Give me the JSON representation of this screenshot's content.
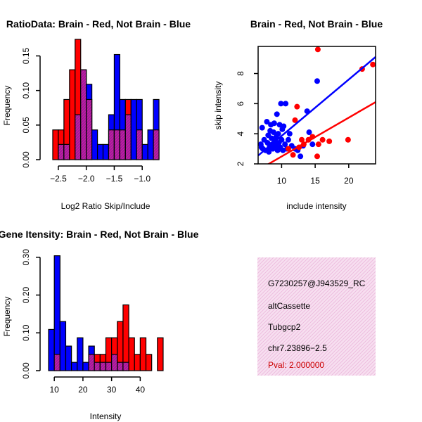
{
  "colors": {
    "brain": "#ff0000",
    "not_brain": "#0000ff",
    "overlap": "#9b1b9b",
    "overlap_hatch": "#d020a0",
    "info_bg": "#f7dff0",
    "info_hatch": "#ecb8dc",
    "pval": "#cc0000"
  },
  "chart_data": [
    {
      "id": "ratio-hist",
      "type": "bar",
      "title": "RatioData: Brain - Red, Not Brain - Blue",
      "xlabel": "Log2 Ratio Skip/Include",
      "ylabel": "Frequency",
      "xlim": [
        -2.65,
        -0.6
      ],
      "ylim": [
        0,
        0.18
      ],
      "xticks": [
        -2.5,
        -2.0,
        -1.5,
        -1.0
      ],
      "xtick_labels": [
        "−2.5",
        "−2.0",
        "−1.5",
        "−1.0"
      ],
      "yticks": [
        0,
        0.05,
        0.1,
        0.15
      ],
      "ytick_labels": [
        "0.00",
        "0.05",
        "0.10",
        "0.15"
      ],
      "bin_edges": [
        -2.6,
        -2.5,
        -2.4,
        -2.3,
        -2.2,
        -2.1,
        -2.0,
        -1.9,
        -1.8,
        -1.7,
        -1.6,
        -1.5,
        -1.4,
        -1.3,
        -1.2,
        -1.1,
        -1.0,
        -0.9,
        -0.8,
        -0.7
      ],
      "series": [
        {
          "name": "Brain",
          "color": "red",
          "values": [
            0.043,
            0.043,
            0.087,
            0.13,
            0.174,
            0.13,
            0.087,
            0.0,
            0.0,
            0.0,
            0.043,
            0.043,
            0.043,
            0.087,
            0.0,
            0.043,
            0.0,
            0.0,
            0.043
          ]
        },
        {
          "name": "Not Brain",
          "color": "blue",
          "values": [
            0.0,
            0.022,
            0.022,
            0.0,
            0.065,
            0.13,
            0.109,
            0.043,
            0.022,
            0.022,
            0.065,
            0.152,
            0.087,
            0.065,
            0.087,
            0.087,
            0.022,
            0.043,
            0.087
          ]
        }
      ]
    },
    {
      "id": "intensity-scatter",
      "type": "scatter",
      "title": "Brain - Red, Not Brain - Blue",
      "xlabel": "include intensity",
      "ylabel": "skip intensity",
      "xlim": [
        6.5,
        24
      ],
      "ylim": [
        2,
        9.8
      ],
      "xticks": [
        10,
        15,
        20
      ],
      "xtick_labels": [
        "10",
        "15",
        "20"
      ],
      "yticks": [
        2,
        4,
        6,
        8
      ],
      "ytick_labels": [
        "2",
        "4",
        "6",
        "8"
      ],
      "series": [
        {
          "name": "Not Brain",
          "color": "blue",
          "points": [
            [
              6.9,
              3.3
            ],
            [
              7.0,
              3.1
            ],
            [
              7.1,
              4.4
            ],
            [
              7.2,
              3.0
            ],
            [
              7.4,
              3.6
            ],
            [
              7.6,
              2.9
            ],
            [
              7.8,
              4.8
            ],
            [
              7.9,
              3.4
            ],
            [
              8.0,
              3.9
            ],
            [
              8.1,
              2.8
            ],
            [
              8.2,
              3.1
            ],
            [
              8.3,
              4.2
            ],
            [
              8.4,
              4.6
            ],
            [
              8.5,
              3.7
            ],
            [
              8.6,
              3.3
            ],
            [
              8.7,
              3.0
            ],
            [
              8.8,
              4.1
            ],
            [
              8.9,
              4.7
            ],
            [
              9.0,
              3.5
            ],
            [
              9.1,
              3.2
            ],
            [
              9.2,
              3.8
            ],
            [
              9.3,
              5.3
            ],
            [
              9.4,
              2.9
            ],
            [
              9.5,
              4.0
            ],
            [
              9.6,
              3.4
            ],
            [
              9.7,
              4.6
            ],
            [
              9.8,
              3.1
            ],
            [
              9.9,
              6.0
            ],
            [
              10.0,
              3.6
            ],
            [
              10.1,
              4.3
            ],
            [
              10.2,
              2.9
            ],
            [
              10.3,
              4.5
            ],
            [
              10.5,
              3.3
            ],
            [
              10.6,
              6.0
            ],
            [
              10.8,
              3.0
            ],
            [
              11.0,
              3.6
            ],
            [
              11.2,
              4.0
            ],
            [
              11.5,
              3.2
            ],
            [
              12.0,
              3.0
            ],
            [
              12.4,
              2.9
            ],
            [
              12.8,
              2.5
            ],
            [
              13.2,
              3.2
            ],
            [
              13.8,
              5.5
            ],
            [
              14.1,
              4.1
            ],
            [
              14.6,
              3.3
            ],
            [
              15.3,
              7.5
            ]
          ]
        },
        {
          "name": "Brain",
          "color": "red",
          "points": [
            [
              11.0,
              3.0
            ],
            [
              11.7,
              2.6
            ],
            [
              12.0,
              4.9
            ],
            [
              12.3,
              5.8
            ],
            [
              12.6,
              3.1
            ],
            [
              13.0,
              3.6
            ],
            [
              13.3,
              3.3
            ],
            [
              14.0,
              3.6
            ],
            [
              14.6,
              3.8
            ],
            [
              15.3,
              2.5
            ],
            [
              15.5,
              3.3
            ],
            [
              15.4,
              9.6
            ],
            [
              16.1,
              3.6
            ],
            [
              17.1,
              3.5
            ],
            [
              19.9,
              3.6
            ],
            [
              22.0,
              8.3
            ],
            [
              23.6,
              8.6
            ]
          ]
        }
      ],
      "fit_lines": [
        {
          "name": "Not Brain fit",
          "color": "blue",
          "x": [
            6.5,
            24
          ],
          "y": [
            2.55,
            9.1
          ]
        },
        {
          "name": "Brain fit",
          "color": "red",
          "x": [
            7.5,
            24
          ],
          "y": [
            1.85,
            6.1
          ]
        }
      ]
    },
    {
      "id": "intensity-hist",
      "type": "bar",
      "title": "Gene Itensity: Brain - Red, Not Brain - Blue",
      "xlabel": "Intensity",
      "ylabel": "Frequency",
      "xlim": [
        7.5,
        48.5
      ],
      "ylim": [
        0,
        0.32
      ],
      "xticks": [
        10,
        20,
        30,
        40
      ],
      "xtick_labels": [
        "10",
        "20",
        "30",
        "40"
      ],
      "yticks": [
        0,
        0.1,
        0.2,
        0.3
      ],
      "ytick_labels": [
        "0.00",
        "0.10",
        "0.20",
        "0.30"
      ],
      "bin_edges": [
        8,
        10,
        12,
        14,
        16,
        18,
        20,
        22,
        24,
        26,
        28,
        30,
        32,
        34,
        36,
        38,
        40,
        42,
        44,
        46,
        48
      ],
      "series": [
        {
          "name": "Brain",
          "color": "red",
          "values": [
            0.0,
            0.043,
            0.0,
            0.0,
            0.0,
            0.0,
            0.0,
            0.043,
            0.043,
            0.043,
            0.087,
            0.087,
            0.13,
            0.174,
            0.087,
            0.043,
            0.087,
            0.043,
            0.0,
            0.087
          ]
        },
        {
          "name": "Not Brain",
          "color": "blue",
          "values": [
            0.109,
            0.304,
            0.13,
            0.065,
            0.022,
            0.087,
            0.022,
            0.065,
            0.022,
            0.022,
            0.022,
            0.043,
            0.022,
            0.022,
            0.0,
            0.0,
            0.0,
            0.0,
            0.0,
            0.0
          ]
        }
      ]
    }
  ],
  "info_panel": {
    "lines": [
      "G7230257@J943529_RC",
      "altCassette",
      "Tubgcp2",
      "chr7.23896−2.5"
    ],
    "pval": "Pval: 2.000000"
  }
}
